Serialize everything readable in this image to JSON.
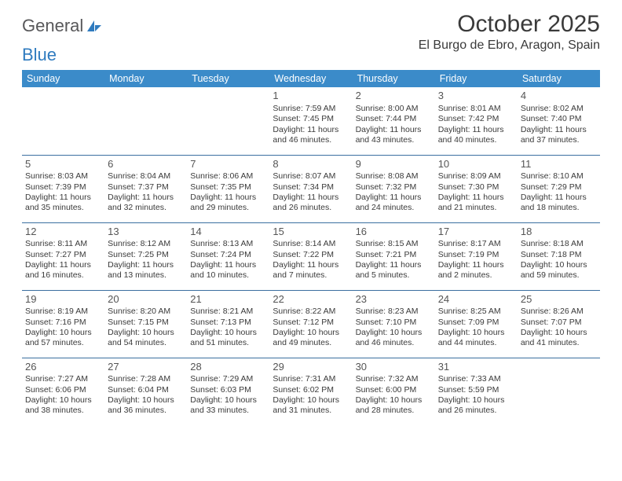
{
  "brand": {
    "part1": "General",
    "part2": "Blue"
  },
  "title": "October 2025",
  "location": "El Burgo de Ebro, Aragon, Spain",
  "colors": {
    "header_bg": "#3b8bc9",
    "header_fg": "#ffffff",
    "row_border": "#3b6fa0",
    "text": "#3a3a3a",
    "brand_gray": "#58585a",
    "brand_blue": "#2f7bbf",
    "page_bg": "#ffffff"
  },
  "weekdays": [
    "Sunday",
    "Monday",
    "Tuesday",
    "Wednesday",
    "Thursday",
    "Friday",
    "Saturday"
  ],
  "weeks": [
    [
      null,
      null,
      null,
      {
        "d": "1",
        "sr": "Sunrise: 7:59 AM",
        "ss": "Sunset: 7:45 PM",
        "dl1": "Daylight: 11 hours",
        "dl2": "and 46 minutes."
      },
      {
        "d": "2",
        "sr": "Sunrise: 8:00 AM",
        "ss": "Sunset: 7:44 PM",
        "dl1": "Daylight: 11 hours",
        "dl2": "and 43 minutes."
      },
      {
        "d": "3",
        "sr": "Sunrise: 8:01 AM",
        "ss": "Sunset: 7:42 PM",
        "dl1": "Daylight: 11 hours",
        "dl2": "and 40 minutes."
      },
      {
        "d": "4",
        "sr": "Sunrise: 8:02 AM",
        "ss": "Sunset: 7:40 PM",
        "dl1": "Daylight: 11 hours",
        "dl2": "and 37 minutes."
      }
    ],
    [
      {
        "d": "5",
        "sr": "Sunrise: 8:03 AM",
        "ss": "Sunset: 7:39 PM",
        "dl1": "Daylight: 11 hours",
        "dl2": "and 35 minutes."
      },
      {
        "d": "6",
        "sr": "Sunrise: 8:04 AM",
        "ss": "Sunset: 7:37 PM",
        "dl1": "Daylight: 11 hours",
        "dl2": "and 32 minutes."
      },
      {
        "d": "7",
        "sr": "Sunrise: 8:06 AM",
        "ss": "Sunset: 7:35 PM",
        "dl1": "Daylight: 11 hours",
        "dl2": "and 29 minutes."
      },
      {
        "d": "8",
        "sr": "Sunrise: 8:07 AM",
        "ss": "Sunset: 7:34 PM",
        "dl1": "Daylight: 11 hours",
        "dl2": "and 26 minutes."
      },
      {
        "d": "9",
        "sr": "Sunrise: 8:08 AM",
        "ss": "Sunset: 7:32 PM",
        "dl1": "Daylight: 11 hours",
        "dl2": "and 24 minutes."
      },
      {
        "d": "10",
        "sr": "Sunrise: 8:09 AM",
        "ss": "Sunset: 7:30 PM",
        "dl1": "Daylight: 11 hours",
        "dl2": "and 21 minutes."
      },
      {
        "d": "11",
        "sr": "Sunrise: 8:10 AM",
        "ss": "Sunset: 7:29 PM",
        "dl1": "Daylight: 11 hours",
        "dl2": "and 18 minutes."
      }
    ],
    [
      {
        "d": "12",
        "sr": "Sunrise: 8:11 AM",
        "ss": "Sunset: 7:27 PM",
        "dl1": "Daylight: 11 hours",
        "dl2": "and 16 minutes."
      },
      {
        "d": "13",
        "sr": "Sunrise: 8:12 AM",
        "ss": "Sunset: 7:25 PM",
        "dl1": "Daylight: 11 hours",
        "dl2": "and 13 minutes."
      },
      {
        "d": "14",
        "sr": "Sunrise: 8:13 AM",
        "ss": "Sunset: 7:24 PM",
        "dl1": "Daylight: 11 hours",
        "dl2": "and 10 minutes."
      },
      {
        "d": "15",
        "sr": "Sunrise: 8:14 AM",
        "ss": "Sunset: 7:22 PM",
        "dl1": "Daylight: 11 hours",
        "dl2": "and 7 minutes."
      },
      {
        "d": "16",
        "sr": "Sunrise: 8:15 AM",
        "ss": "Sunset: 7:21 PM",
        "dl1": "Daylight: 11 hours",
        "dl2": "and 5 minutes."
      },
      {
        "d": "17",
        "sr": "Sunrise: 8:17 AM",
        "ss": "Sunset: 7:19 PM",
        "dl1": "Daylight: 11 hours",
        "dl2": "and 2 minutes."
      },
      {
        "d": "18",
        "sr": "Sunrise: 8:18 AM",
        "ss": "Sunset: 7:18 PM",
        "dl1": "Daylight: 10 hours",
        "dl2": "and 59 minutes."
      }
    ],
    [
      {
        "d": "19",
        "sr": "Sunrise: 8:19 AM",
        "ss": "Sunset: 7:16 PM",
        "dl1": "Daylight: 10 hours",
        "dl2": "and 57 minutes."
      },
      {
        "d": "20",
        "sr": "Sunrise: 8:20 AM",
        "ss": "Sunset: 7:15 PM",
        "dl1": "Daylight: 10 hours",
        "dl2": "and 54 minutes."
      },
      {
        "d": "21",
        "sr": "Sunrise: 8:21 AM",
        "ss": "Sunset: 7:13 PM",
        "dl1": "Daylight: 10 hours",
        "dl2": "and 51 minutes."
      },
      {
        "d": "22",
        "sr": "Sunrise: 8:22 AM",
        "ss": "Sunset: 7:12 PM",
        "dl1": "Daylight: 10 hours",
        "dl2": "and 49 minutes."
      },
      {
        "d": "23",
        "sr": "Sunrise: 8:23 AM",
        "ss": "Sunset: 7:10 PM",
        "dl1": "Daylight: 10 hours",
        "dl2": "and 46 minutes."
      },
      {
        "d": "24",
        "sr": "Sunrise: 8:25 AM",
        "ss": "Sunset: 7:09 PM",
        "dl1": "Daylight: 10 hours",
        "dl2": "and 44 minutes."
      },
      {
        "d": "25",
        "sr": "Sunrise: 8:26 AM",
        "ss": "Sunset: 7:07 PM",
        "dl1": "Daylight: 10 hours",
        "dl2": "and 41 minutes."
      }
    ],
    [
      {
        "d": "26",
        "sr": "Sunrise: 7:27 AM",
        "ss": "Sunset: 6:06 PM",
        "dl1": "Daylight: 10 hours",
        "dl2": "and 38 minutes."
      },
      {
        "d": "27",
        "sr": "Sunrise: 7:28 AM",
        "ss": "Sunset: 6:04 PM",
        "dl1": "Daylight: 10 hours",
        "dl2": "and 36 minutes."
      },
      {
        "d": "28",
        "sr": "Sunrise: 7:29 AM",
        "ss": "Sunset: 6:03 PM",
        "dl1": "Daylight: 10 hours",
        "dl2": "and 33 minutes."
      },
      {
        "d": "29",
        "sr": "Sunrise: 7:31 AM",
        "ss": "Sunset: 6:02 PM",
        "dl1": "Daylight: 10 hours",
        "dl2": "and 31 minutes."
      },
      {
        "d": "30",
        "sr": "Sunrise: 7:32 AM",
        "ss": "Sunset: 6:00 PM",
        "dl1": "Daylight: 10 hours",
        "dl2": "and 28 minutes."
      },
      {
        "d": "31",
        "sr": "Sunrise: 7:33 AM",
        "ss": "Sunset: 5:59 PM",
        "dl1": "Daylight: 10 hours",
        "dl2": "and 26 minutes."
      },
      null
    ]
  ]
}
